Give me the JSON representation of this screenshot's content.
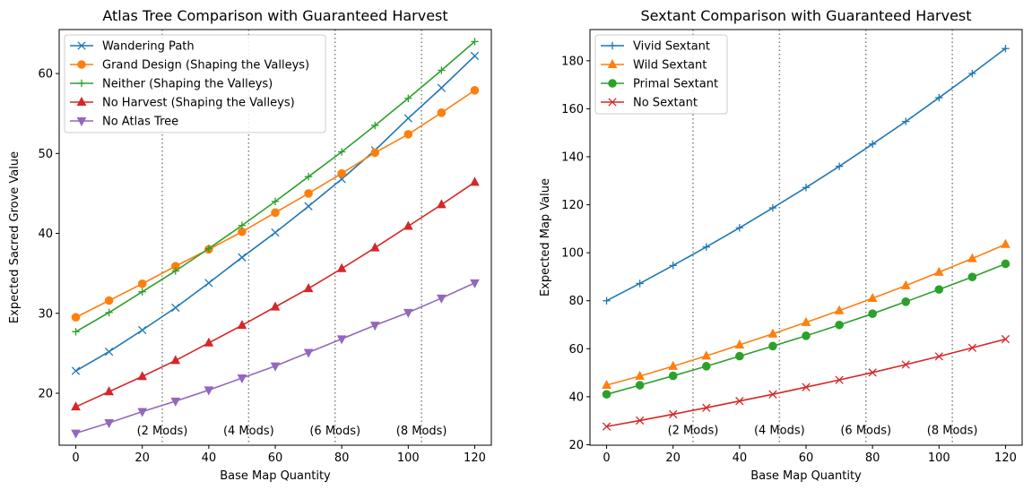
{
  "chart_data": [
    {
      "type": "line",
      "title": "Atlas Tree Comparison with Guaranteed Harvest",
      "xlabel": "Base Map Quantity",
      "ylabel": "Expected Sacred Grove Value",
      "xlim": [
        -5,
        125
      ],
      "ylim": [
        13.5,
        65.5
      ],
      "xticks": [
        0,
        20,
        40,
        60,
        80,
        100,
        120
      ],
      "yticks": [
        20,
        30,
        40,
        50,
        60
      ],
      "legend_position": "top-left",
      "grid": false,
      "vlines": [
        26,
        52,
        78,
        104
      ],
      "annotations": [
        {
          "text": "(2 Mods)",
          "x": 26,
          "y": 15.3
        },
        {
          "text": "(4 Mods)",
          "x": 52,
          "y": 15.3
        },
        {
          "text": "(6 Mods)",
          "x": 78,
          "y": 15.3
        },
        {
          "text": "(8 Mods)",
          "x": 104,
          "y": 15.3
        }
      ],
      "x": [
        0,
        10,
        20,
        30,
        40,
        50,
        60,
        70,
        80,
        90,
        100,
        110,
        120
      ],
      "series": [
        {
          "name": "Wandering Path",
          "color": "#1f77b4",
          "marker": "x",
          "values": [
            22.8,
            25.2,
            27.9,
            30.7,
            33.8,
            37.0,
            40.1,
            43.4,
            46.8,
            50.4,
            54.4,
            58.2,
            62.2
          ]
        },
        {
          "name": "Grand Design (Shaping the Valleys)",
          "color": "#ff7f0e",
          "marker": "circle",
          "values": [
            29.5,
            31.6,
            33.7,
            35.9,
            38.0,
            40.2,
            42.6,
            45.0,
            47.5,
            50.1,
            52.4,
            55.1,
            57.9
          ]
        },
        {
          "name": "Neither (Shaping the Valleys)",
          "color": "#2ca02c",
          "marker": "plus",
          "values": [
            27.7,
            30.1,
            32.7,
            35.3,
            38.1,
            41.0,
            44.0,
            47.1,
            50.2,
            53.5,
            56.9,
            60.4,
            64.0
          ]
        },
        {
          "name": "No Harvest (Shaping the Valleys)",
          "color": "#d62728",
          "marker": "triangle-up",
          "values": [
            18.3,
            20.2,
            22.1,
            24.1,
            26.3,
            28.5,
            30.8,
            33.1,
            35.6,
            38.2,
            40.9,
            43.6,
            46.4
          ]
        },
        {
          "name": "No Atlas Tree",
          "color": "#9467bd",
          "marker": "triangle-down",
          "values": [
            15.0,
            16.3,
            17.7,
            19.0,
            20.4,
            21.9,
            23.4,
            25.1,
            26.8,
            28.5,
            30.1,
            31.9,
            33.8
          ]
        }
      ]
    },
    {
      "type": "line",
      "title": "Sextant Comparison with Guaranteed Harvest",
      "xlabel": "Base Map Quantity",
      "ylabel": "Expected Map Value",
      "xlim": [
        -5,
        125
      ],
      "ylim": [
        19.8,
        193
      ],
      "xticks": [
        0,
        20,
        40,
        60,
        80,
        100,
        120
      ],
      "yticks": [
        20,
        40,
        60,
        80,
        100,
        120,
        140,
        160,
        180
      ],
      "legend_position": "top-left",
      "grid": false,
      "vlines": [
        26,
        52,
        78,
        104
      ],
      "annotations": [
        {
          "text": "(2 Mods)",
          "x": 26,
          "y": 26
        },
        {
          "text": "(4 Mods)",
          "x": 52,
          "y": 26
        },
        {
          "text": "(6 Mods)",
          "x": 78,
          "y": 26
        },
        {
          "text": "(8 Mods)",
          "x": 104,
          "y": 26
        }
      ],
      "x": [
        0,
        10,
        20,
        30,
        40,
        50,
        60,
        70,
        80,
        90,
        100,
        110,
        120
      ],
      "series": [
        {
          "name": "Vivid Sextant",
          "color": "#1f77b4",
          "marker": "plus",
          "values": [
            80.0,
            87.2,
            94.7,
            102.4,
            110.4,
            118.7,
            127.2,
            136.0,
            145.3,
            154.7,
            164.6,
            174.7,
            185.1
          ]
        },
        {
          "name": "Wild Sextant",
          "color": "#ff7f0e",
          "marker": "triangle-up",
          "values": [
            44.8,
            48.6,
            52.7,
            57.0,
            61.6,
            66.2,
            71.0,
            75.9,
            81.0,
            86.3,
            91.9,
            97.6,
            103.5
          ]
        },
        {
          "name": "Primal Sextant",
          "color": "#2ca02c",
          "marker": "circle",
          "values": [
            41.0,
            44.8,
            48.7,
            52.7,
            56.9,
            61.1,
            65.4,
            69.9,
            74.6,
            79.6,
            84.7,
            89.9,
            95.4
          ]
        },
        {
          "name": "No Sextant",
          "color": "#d62728",
          "marker": "x",
          "values": [
            27.6,
            30.1,
            32.7,
            35.4,
            38.2,
            41.0,
            44.0,
            47.0,
            50.1,
            53.4,
            56.8,
            60.4,
            64.0
          ]
        }
      ]
    }
  ]
}
